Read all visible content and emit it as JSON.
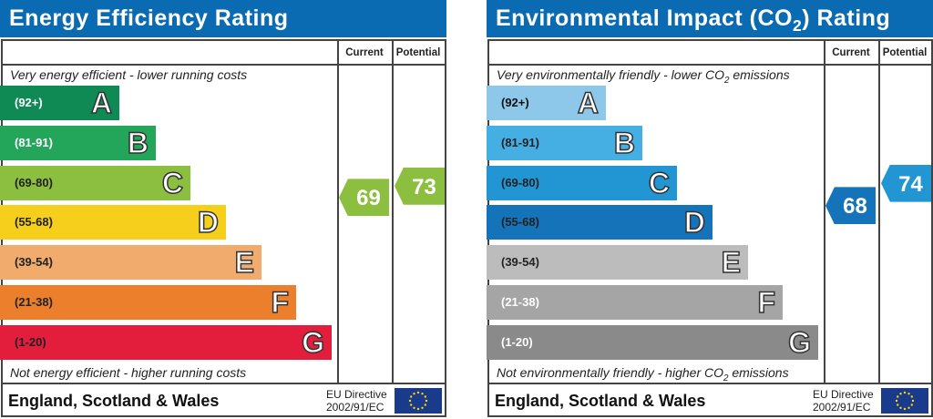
{
  "charts": [
    {
      "title": "Energy Efficiency Rating",
      "col_current": "Current",
      "col_potential": "Potential",
      "top_text": "Very energy efficient - lower running costs",
      "bottom_text": "Not energy efficient - higher running costs",
      "region": "England, Scotland & Wales",
      "directive_line1": "EU Directive",
      "directive_line2": "2002/91/EC",
      "current": 69,
      "potential": 73,
      "current_color": "#8cbe3f",
      "potential_color": "#8cbe3f",
      "bands": [
        {
          "letter": "A",
          "range": "(92+)",
          "color": "#0f8a55",
          "text_color": "#ffffff"
        },
        {
          "letter": "B",
          "range": "(81-91)",
          "color": "#23a65a",
          "text_color": "#ffffff"
        },
        {
          "letter": "C",
          "range": "(69-80)",
          "color": "#8cbe3f",
          "text_color": "#222222"
        },
        {
          "letter": "D",
          "range": "(55-68)",
          "color": "#f5cf1b",
          "text_color": "#222222"
        },
        {
          "letter": "E",
          "range": "(39-54)",
          "color": "#f1ab6c",
          "text_color": "#222222"
        },
        {
          "letter": "F",
          "range": "(21-38)",
          "color": "#ec7f2b",
          "text_color": "#222222"
        },
        {
          "letter": "G",
          "range": "(1-20)",
          "color": "#e31d3c",
          "text_color": "#222222"
        }
      ]
    },
    {
      "title": "Environmental Impact (CO2) Rating",
      "col_current": "Current",
      "col_potential": "Potential",
      "top_text": "Very environmentally friendly - lower CO2 emissions",
      "bottom_text": "Not environmentally friendly - higher CO2 emissions",
      "region": "England, Scotland & Wales",
      "directive_line1": "EU Directive",
      "directive_line2": "2002/91/EC",
      "current": 68,
      "potential": 74,
      "current_color": "#1573b9",
      "potential_color": "#2295d3",
      "bands": [
        {
          "letter": "A",
          "range": "(92+)",
          "color": "#8dc8ea",
          "text_color": "#111111"
        },
        {
          "letter": "B",
          "range": "(81-91)",
          "color": "#45aee3",
          "text_color": "#222222"
        },
        {
          "letter": "C",
          "range": "(69-80)",
          "color": "#2295d3",
          "text_color": "#222222"
        },
        {
          "letter": "D",
          "range": "(55-68)",
          "color": "#1573b9",
          "text_color": "#222222"
        },
        {
          "letter": "E",
          "range": "(39-54)",
          "color": "#bcbcbc",
          "text_color": "#222222"
        },
        {
          "letter": "F",
          "range": "(21-38)",
          "color": "#a5a5a5",
          "text_color": "#ffffff"
        },
        {
          "letter": "G",
          "range": "(1-20)",
          "color": "#8a8a8a",
          "text_color": "#ffffff"
        }
      ]
    }
  ]
}
